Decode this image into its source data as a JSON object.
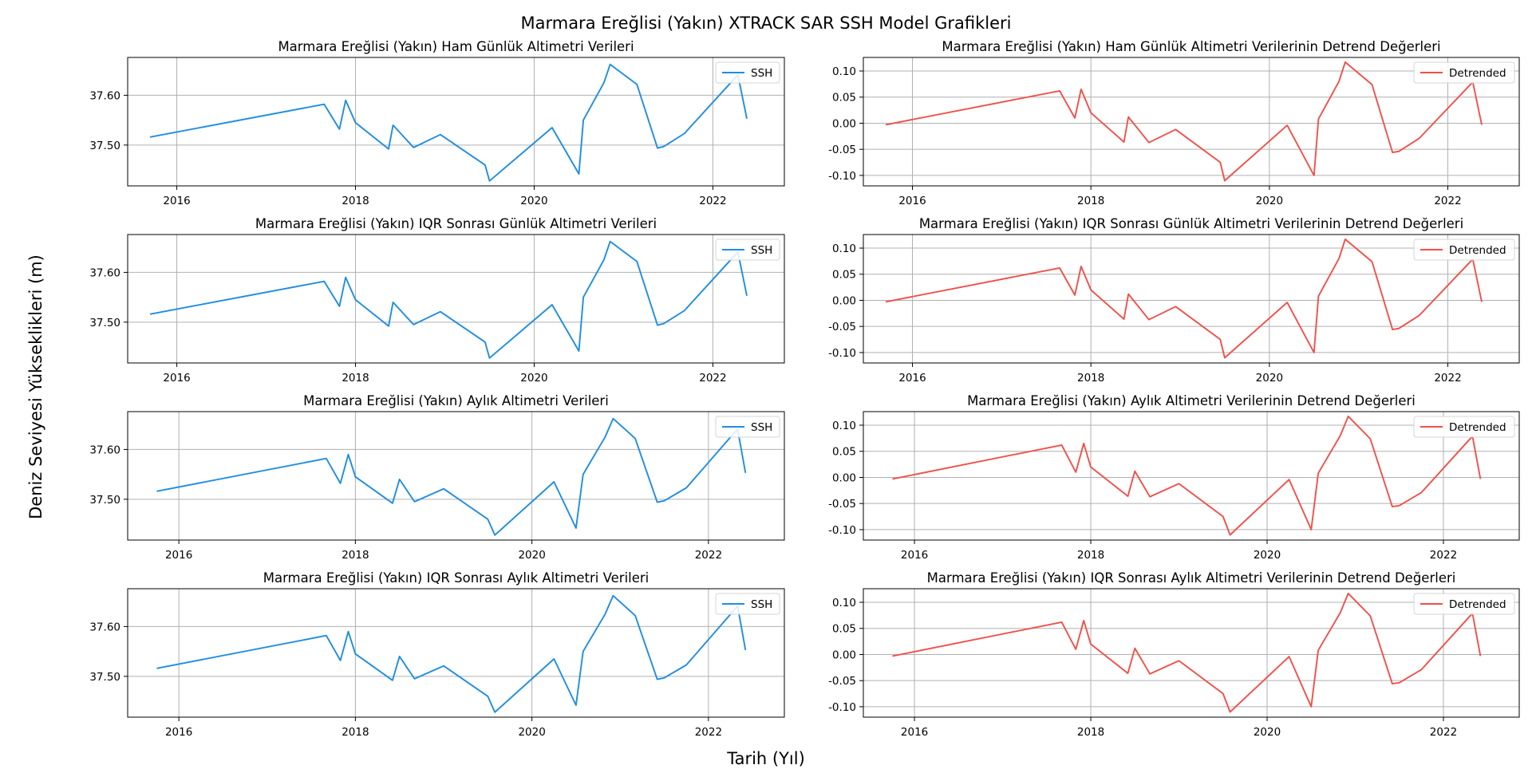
{
  "figure": {
    "suptitle": "Marmara Ereğlisi (Yakın) XTRACK SAR SSH Model Grafikleri",
    "supxlabel": "Tarih (Yıl)",
    "supylabel": "Deniz Seviyesi Yükseklikleri (m)"
  },
  "colors": {
    "ssh": "#1f8de0",
    "detrended": "#f0504a",
    "grid": "#b0b0b0"
  },
  "chart_data": [
    {
      "type": "line",
      "title": "Marmara Ereğlisi (Yakın) Ham Günlük Altimetri Verileri",
      "legend_position": "upper-right",
      "grid": true,
      "x_ticks": [
        2016,
        2018,
        2020,
        2022
      ],
      "y_ticks": [
        37.5,
        37.6
      ],
      "y_tick_labels": [
        "37.50",
        "37.60"
      ],
      "xlim": [
        2015.45,
        2022.8
      ],
      "ylim": [
        37.418,
        37.676
      ],
      "series": [
        {
          "name": "SSH",
          "color_key": "ssh",
          "x": [
            2015.7,
            2017.65,
            2017.82,
            2017.89,
            2018.0,
            2018.37,
            2018.42,
            2018.65,
            2018.95,
            2019.45,
            2019.5,
            2020.2,
            2020.5,
            2020.55,
            2020.78,
            2020.85,
            2021.15,
            2021.38,
            2021.45,
            2021.68,
            2022.28,
            2022.38
          ],
          "y": [
            37.516,
            37.582,
            37.532,
            37.59,
            37.545,
            37.492,
            37.54,
            37.495,
            37.521,
            37.46,
            37.428,
            37.535,
            37.442,
            37.55,
            37.625,
            37.662,
            37.622,
            37.494,
            37.497,
            37.523,
            37.641,
            37.553
          ]
        }
      ]
    },
    {
      "type": "line",
      "title": "Marmara Ereğlisi (Yakın) Ham Günlük Altimetri Verilerinin Detrend Değerleri",
      "legend_position": "upper-right",
      "grid": true,
      "x_ticks": [
        2016,
        2018,
        2020,
        2022
      ],
      "y_ticks": [
        -0.1,
        -0.05,
        0.0,
        0.05,
        0.1
      ],
      "y_tick_labels": [
        "-0.10",
        "-0.05",
        "0.00",
        "0.05",
        "0.10"
      ],
      "xlim": [
        2015.45,
        2022.8
      ],
      "ylim": [
        -0.12,
        0.126
      ],
      "series": [
        {
          "name": "Detrended",
          "color_key": "detrended",
          "x": [
            2015.7,
            2017.65,
            2017.82,
            2017.89,
            2018.0,
            2018.37,
            2018.42,
            2018.65,
            2018.95,
            2019.45,
            2019.5,
            2020.2,
            2020.5,
            2020.55,
            2020.78,
            2020.85,
            2021.15,
            2021.38,
            2021.45,
            2021.68,
            2022.28,
            2022.38
          ],
          "y": [
            -0.003,
            0.062,
            0.01,
            0.065,
            0.02,
            -0.036,
            0.012,
            -0.037,
            -0.012,
            -0.075,
            -0.11,
            -0.004,
            -0.1,
            0.008,
            0.08,
            0.117,
            0.074,
            -0.056,
            -0.054,
            -0.029,
            0.079,
            -0.003
          ]
        }
      ]
    },
    {
      "type": "line",
      "title": "Marmara Ereğlisi (Yakın) IQR Sonrası Günlük Altimetri Verileri",
      "legend_position": "upper-right",
      "grid": true,
      "x_ticks": [
        2016,
        2018,
        2020,
        2022
      ],
      "y_ticks": [
        37.5,
        37.6
      ],
      "y_tick_labels": [
        "37.50",
        "37.60"
      ],
      "xlim": [
        2015.45,
        2022.8
      ],
      "ylim": [
        37.418,
        37.676
      ],
      "series": [
        {
          "name": "SSH",
          "color_key": "ssh",
          "x": [
            2015.7,
            2017.65,
            2017.82,
            2017.89,
            2018.0,
            2018.37,
            2018.42,
            2018.65,
            2018.95,
            2019.45,
            2019.5,
            2020.2,
            2020.5,
            2020.55,
            2020.78,
            2020.85,
            2021.15,
            2021.38,
            2021.45,
            2021.68,
            2022.28,
            2022.38
          ],
          "y": [
            37.516,
            37.582,
            37.532,
            37.59,
            37.545,
            37.492,
            37.54,
            37.495,
            37.521,
            37.46,
            37.428,
            37.535,
            37.442,
            37.55,
            37.625,
            37.662,
            37.622,
            37.494,
            37.497,
            37.523,
            37.641,
            37.553
          ]
        }
      ]
    },
    {
      "type": "line",
      "title": "Marmara Ereğlisi (Yakın) IQR Sonrası Günlük Altimetri Verilerinin Detrend Değerleri",
      "legend_position": "upper-right",
      "grid": true,
      "x_ticks": [
        2016,
        2018,
        2020,
        2022
      ],
      "y_ticks": [
        -0.1,
        -0.05,
        0.0,
        0.05,
        0.1
      ],
      "y_tick_labels": [
        "-0.10",
        "-0.05",
        "0.00",
        "0.05",
        "0.10"
      ],
      "xlim": [
        2015.45,
        2022.8
      ],
      "ylim": [
        -0.12,
        0.126
      ],
      "series": [
        {
          "name": "Detrended",
          "color_key": "detrended",
          "x": [
            2015.7,
            2017.65,
            2017.82,
            2017.89,
            2018.0,
            2018.37,
            2018.42,
            2018.65,
            2018.95,
            2019.45,
            2019.5,
            2020.2,
            2020.5,
            2020.55,
            2020.78,
            2020.85,
            2021.15,
            2021.38,
            2021.45,
            2021.68,
            2022.28,
            2022.38
          ],
          "y": [
            -0.003,
            0.062,
            0.01,
            0.065,
            0.02,
            -0.036,
            0.012,
            -0.037,
            -0.012,
            -0.075,
            -0.11,
            -0.004,
            -0.1,
            0.008,
            0.08,
            0.117,
            0.074,
            -0.056,
            -0.054,
            -0.029,
            0.079,
            -0.003
          ]
        }
      ]
    },
    {
      "type": "line",
      "title": "Marmara Ereğlisi (Yakın) Aylık Altimetri Verileri",
      "legend_position": "upper-right",
      "grid": true,
      "x_ticks": [
        2016,
        2018,
        2020,
        2022
      ],
      "y_ticks": [
        37.5,
        37.6
      ],
      "y_tick_labels": [
        "37.50",
        "37.60"
      ],
      "xlim": [
        2015.42,
        2022.86
      ],
      "ylim": [
        37.418,
        37.676
      ],
      "series": [
        {
          "name": "SSH",
          "color_key": "ssh",
          "x": [
            2015.75,
            2017.67,
            2017.83,
            2017.92,
            2018.0,
            2018.42,
            2018.5,
            2018.67,
            2019.0,
            2019.5,
            2019.58,
            2020.25,
            2020.5,
            2020.58,
            2020.83,
            2020.92,
            2021.17,
            2021.42,
            2021.5,
            2021.75,
            2022.33,
            2022.42
          ],
          "y": [
            37.516,
            37.582,
            37.532,
            37.59,
            37.545,
            37.492,
            37.54,
            37.495,
            37.521,
            37.46,
            37.428,
            37.535,
            37.442,
            37.55,
            37.625,
            37.662,
            37.622,
            37.494,
            37.497,
            37.523,
            37.641,
            37.553
          ]
        }
      ]
    },
    {
      "type": "line",
      "title": "Marmara Ereğlisi (Yakın) Aylık Altimetri Verilerinin Detrend Değerleri",
      "legend_position": "upper-right",
      "grid": true,
      "x_ticks": [
        2016,
        2018,
        2020,
        2022
      ],
      "y_ticks": [
        -0.1,
        -0.05,
        0.0,
        0.05,
        0.1
      ],
      "y_tick_labels": [
        "-0.10",
        "-0.05",
        "0.00",
        "0.05",
        "0.10"
      ],
      "xlim": [
        2015.42,
        2022.86
      ],
      "ylim": [
        -0.12,
        0.126
      ],
      "series": [
        {
          "name": "Detrended",
          "color_key": "detrended",
          "x": [
            2015.75,
            2017.67,
            2017.83,
            2017.92,
            2018.0,
            2018.42,
            2018.5,
            2018.67,
            2019.0,
            2019.5,
            2019.58,
            2020.25,
            2020.5,
            2020.58,
            2020.83,
            2020.92,
            2021.17,
            2021.42,
            2021.5,
            2021.75,
            2022.33,
            2022.42
          ],
          "y": [
            -0.003,
            0.062,
            0.01,
            0.065,
            0.02,
            -0.036,
            0.012,
            -0.037,
            -0.012,
            -0.075,
            -0.11,
            -0.004,
            -0.1,
            0.008,
            0.08,
            0.117,
            0.074,
            -0.056,
            -0.054,
            -0.029,
            0.079,
            -0.003
          ]
        }
      ]
    },
    {
      "type": "line",
      "title": "Marmara Ereğlisi (Yakın) IQR Sonrası Aylık Altimetri Verileri",
      "legend_position": "upper-right",
      "grid": true,
      "x_ticks": [
        2016,
        2018,
        2020,
        2022
      ],
      "y_ticks": [
        37.5,
        37.6
      ],
      "y_tick_labels": [
        "37.50",
        "37.60"
      ],
      "xlim": [
        2015.42,
        2022.86
      ],
      "ylim": [
        37.418,
        37.676
      ],
      "series": [
        {
          "name": "SSH",
          "color_key": "ssh",
          "x": [
            2015.75,
            2017.67,
            2017.83,
            2017.92,
            2018.0,
            2018.42,
            2018.5,
            2018.67,
            2019.0,
            2019.5,
            2019.58,
            2020.25,
            2020.5,
            2020.58,
            2020.83,
            2020.92,
            2021.17,
            2021.42,
            2021.5,
            2021.75,
            2022.33,
            2022.42
          ],
          "y": [
            37.516,
            37.582,
            37.532,
            37.59,
            37.545,
            37.492,
            37.54,
            37.495,
            37.521,
            37.46,
            37.428,
            37.535,
            37.442,
            37.55,
            37.625,
            37.662,
            37.622,
            37.494,
            37.497,
            37.523,
            37.641,
            37.553
          ]
        }
      ]
    },
    {
      "type": "line",
      "title": "Marmara Ereğlisi (Yakın) IQR Sonrası Aylık Altimetri Verilerinin Detrend Değerleri",
      "legend_position": "upper-right",
      "grid": true,
      "x_ticks": [
        2016,
        2018,
        2020,
        2022
      ],
      "y_ticks": [
        -0.1,
        -0.05,
        0.0,
        0.05,
        0.1
      ],
      "y_tick_labels": [
        "-0.10",
        "-0.05",
        "0.00",
        "0.05",
        "0.10"
      ],
      "xlim": [
        2015.42,
        2022.86
      ],
      "ylim": [
        -0.12,
        0.126
      ],
      "series": [
        {
          "name": "Detrended",
          "color_key": "detrended",
          "x": [
            2015.75,
            2017.67,
            2017.83,
            2017.92,
            2018.0,
            2018.42,
            2018.5,
            2018.67,
            2019.0,
            2019.5,
            2019.58,
            2020.25,
            2020.5,
            2020.58,
            2020.83,
            2020.92,
            2021.17,
            2021.42,
            2021.5,
            2021.75,
            2022.33,
            2022.42
          ],
          "y": [
            -0.003,
            0.062,
            0.01,
            0.065,
            0.02,
            -0.036,
            0.012,
            -0.037,
            -0.012,
            -0.075,
            -0.11,
            -0.004,
            -0.1,
            0.008,
            0.08,
            0.117,
            0.074,
            -0.056,
            -0.054,
            -0.029,
            0.079,
            -0.003
          ]
        }
      ]
    }
  ]
}
